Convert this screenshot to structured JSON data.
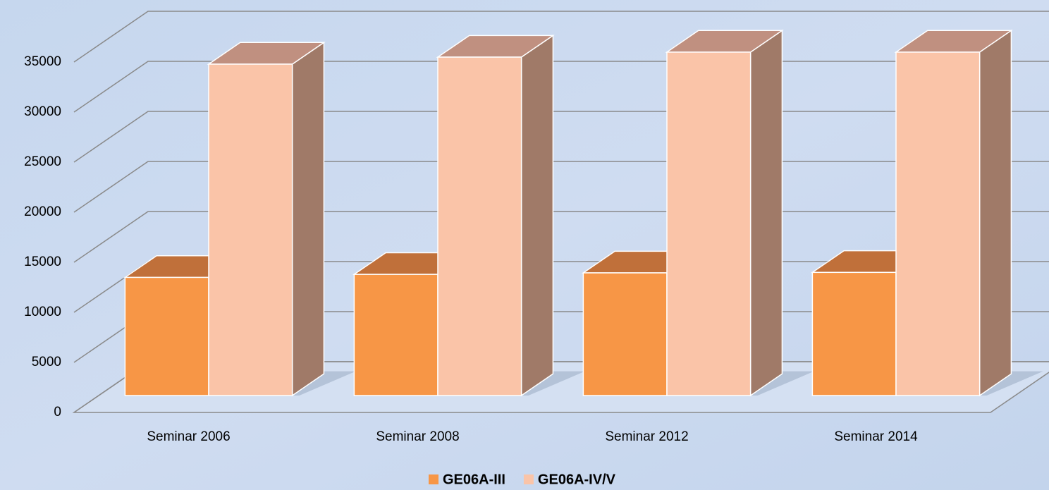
{
  "chart_data": {
    "type": "bar3d",
    "categories": [
      "Seminar 2006",
      "Seminar 2008",
      "Seminar 2012",
      "Seminar 2014"
    ],
    "series": [
      {
        "name": "GE06A-III",
        "color": "#f79646",
        "values": [
          11800,
          12100,
          12250,
          12300
        ]
      },
      {
        "name": "GE06A-IV/V",
        "color": "#fac4a8",
        "values": [
          33100,
          33800,
          34300,
          34300
        ]
      }
    ],
    "ylim": [
      0,
      35000
    ],
    "yticks": [
      0,
      5000,
      10000,
      15000,
      20000,
      25000,
      30000,
      35000
    ],
    "grid": true,
    "legend": "bottom"
  }
}
